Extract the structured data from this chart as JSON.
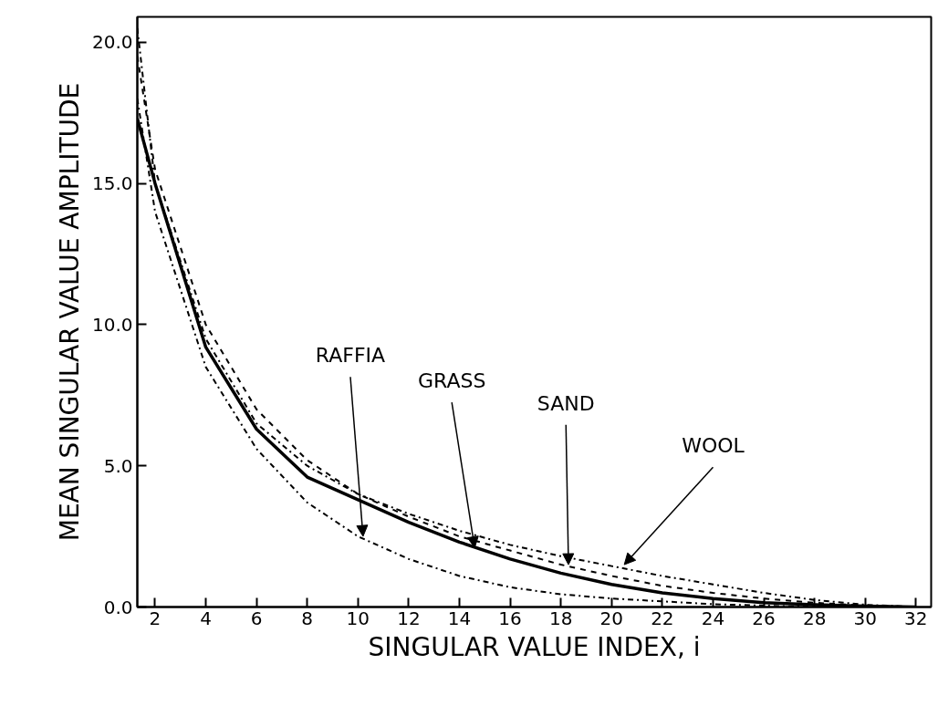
{
  "chart_data": {
    "type": "line",
    "xlabel": "SINGULAR VALUE INDEX, i",
    "ylabel": "MEAN SINGULAR VALUE AMPLITUDE",
    "xlim": [
      1.3,
      32.6
    ],
    "ylim": [
      0,
      20.9
    ],
    "xticks": [
      2,
      4,
      6,
      8,
      10,
      12,
      14,
      16,
      18,
      20,
      22,
      24,
      26,
      28,
      30,
      32
    ],
    "yticks": [
      {
        "value": 0,
        "label": "0.0"
      },
      {
        "value": 5,
        "label": "5.0"
      },
      {
        "value": 10,
        "label": "10.0"
      },
      {
        "value": 15,
        "label": "15.0"
      },
      {
        "value": 20,
        "label": "20.0"
      }
    ],
    "grid": false,
    "x": [
      1.3,
      2,
      4,
      6,
      8,
      10,
      12,
      14,
      16,
      18,
      20,
      22,
      24,
      26,
      28,
      30,
      32
    ],
    "series": [
      {
        "color": "#000000",
        "line_style": "dashdot",
        "values": [
          18,
          14,
          8.5,
          5.6,
          3.7,
          2.5,
          1.7,
          1.1,
          0.7,
          0.45,
          0.3,
          0.2,
          0.1,
          0.05,
          0,
          0,
          0
        ]
      },
      {
        "color": "#000000",
        "line_style": "solid",
        "values": [
          17.3,
          15,
          9.2,
          6.3,
          4.6,
          3.8,
          3.0,
          2.3,
          1.7,
          1.2,
          0.8,
          0.5,
          0.3,
          0.15,
          0.08,
          0.03,
          0
        ]
      },
      {
        "color": "#000000",
        "line_style": "dashed",
        "values": [
          19.5,
          15.5,
          10,
          7,
          5.2,
          4.0,
          3.2,
          2.5,
          2.0,
          1.5,
          1.1,
          0.75,
          0.5,
          0.3,
          0.15,
          0.05,
          0
        ]
      },
      {
        "color": "#000000",
        "line_style": "dashdot",
        "values": [
          20.5,
          15,
          9.5,
          6.5,
          5.0,
          4.0,
          3.3,
          2.7,
          2.2,
          1.8,
          1.45,
          1.1,
          0.8,
          0.5,
          0.25,
          0.08,
          0
        ]
      }
    ],
    "annotations": [
      {
        "text": "RAFFIA",
        "x": 10.2,
        "y": 2.5
      },
      {
        "text": "GRASS",
        "x": 14.6,
        "y": 2.1
      },
      {
        "text": "SAND",
        "x": 18.3,
        "y": 1.5
      },
      {
        "text": "WOOL",
        "x": 20.5,
        "y": 1.5
      }
    ]
  }
}
